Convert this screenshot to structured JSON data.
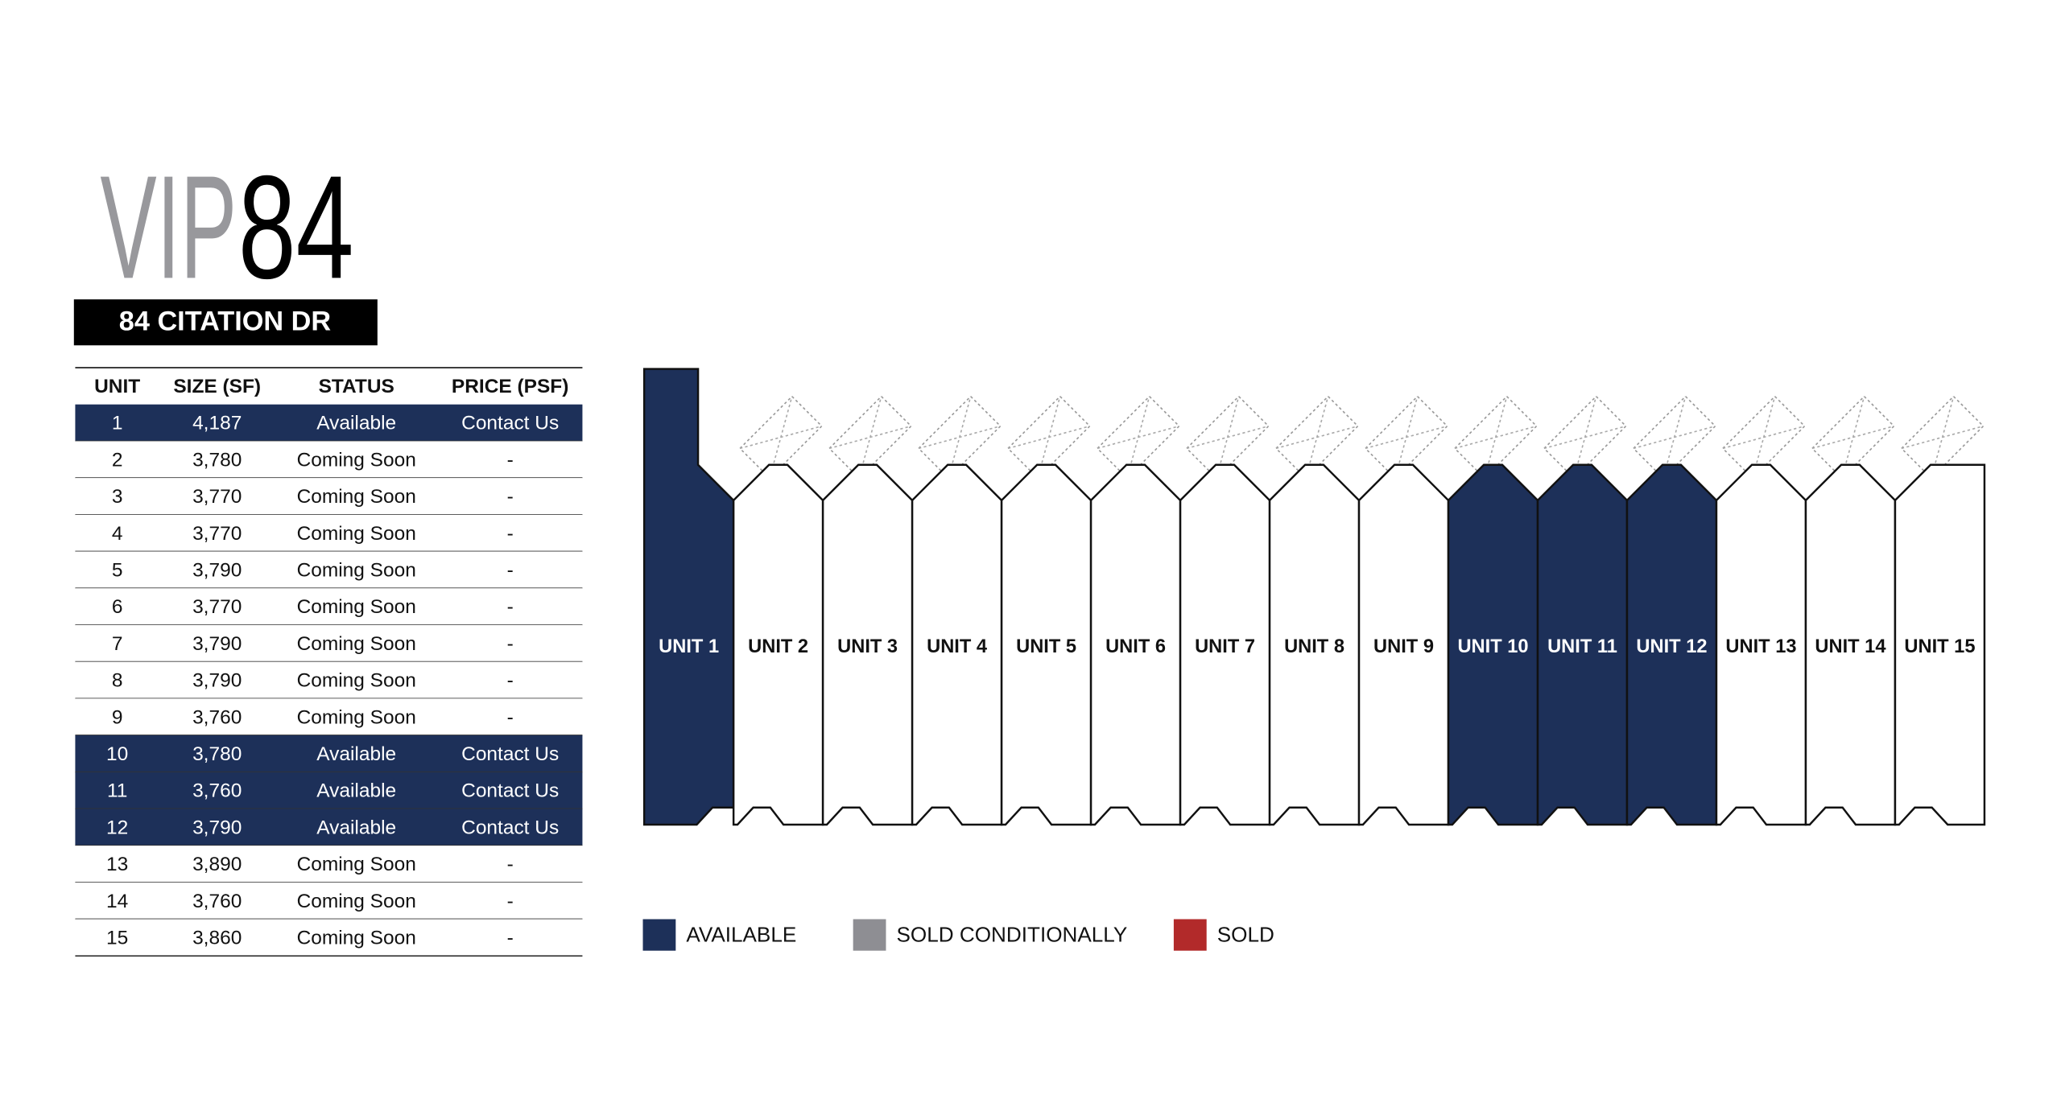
{
  "header": {
    "title_part1": "VIP",
    "title_part2": "84",
    "subtitle": "84 CITATION DR"
  },
  "table": {
    "columns": [
      "UNIT",
      "SIZE (SF)",
      "STATUS",
      "PRICE (PSF)"
    ],
    "rows": [
      {
        "cells": [
          "1",
          "4,187",
          "Available",
          "Contact Us"
        ],
        "fill": "#1d3059",
        "text_color": "#ffffff"
      },
      {
        "cells": [
          "2",
          "3,780",
          "Coming Soon",
          "-"
        ],
        "fill": "#ffffff",
        "text_color": "#111111"
      },
      {
        "cells": [
          "3",
          "3,770",
          "Coming Soon",
          "-"
        ],
        "fill": "#ffffff",
        "text_color": "#111111"
      },
      {
        "cells": [
          "4",
          "3,770",
          "Coming Soon",
          "-"
        ],
        "fill": "#ffffff",
        "text_color": "#111111"
      },
      {
        "cells": [
          "5",
          "3,790",
          "Coming Soon",
          "-"
        ],
        "fill": "#ffffff",
        "text_color": "#111111"
      },
      {
        "cells": [
          "6",
          "3,770",
          "Coming Soon",
          "-"
        ],
        "fill": "#ffffff",
        "text_color": "#111111"
      },
      {
        "cells": [
          "7",
          "3,790",
          "Coming Soon",
          "-"
        ],
        "fill": "#ffffff",
        "text_color": "#111111"
      },
      {
        "cells": [
          "8",
          "3,790",
          "Coming Soon",
          "-"
        ],
        "fill": "#ffffff",
        "text_color": "#111111"
      },
      {
        "cells": [
          "9",
          "3,760",
          "Coming Soon",
          "-"
        ],
        "fill": "#ffffff",
        "text_color": "#111111"
      },
      {
        "cells": [
          "10",
          "3,780",
          "Available",
          "Contact Us"
        ],
        "fill": "#1d3059",
        "text_color": "#ffffff"
      },
      {
        "cells": [
          "11",
          "3,760",
          "Available",
          "Contact Us"
        ],
        "fill": "#1d3059",
        "text_color": "#ffffff"
      },
      {
        "cells": [
          "12",
          "3,790",
          "Available",
          "Contact Us"
        ],
        "fill": "#1d3059",
        "text_color": "#ffffff"
      },
      {
        "cells": [
          "13",
          "3,890",
          "Coming Soon",
          "-"
        ],
        "fill": "#ffffff",
        "text_color": "#111111"
      },
      {
        "cells": [
          "14",
          "3,760",
          "Coming Soon",
          "-"
        ],
        "fill": "#ffffff",
        "text_color": "#111111"
      },
      {
        "cells": [
          "15",
          "3,860",
          "Coming Soon",
          "-"
        ],
        "fill": "#ffffff",
        "text_color": "#111111"
      }
    ]
  },
  "plan": {
    "units": [
      {
        "label": "UNIT 1",
        "fill": "#1d3059",
        "text_color": "#ffffff"
      },
      {
        "label": "UNIT 2",
        "fill": "#ffffff",
        "text_color": "#111111"
      },
      {
        "label": "UNIT 3",
        "fill": "#ffffff",
        "text_color": "#111111"
      },
      {
        "label": "UNIT 4",
        "fill": "#ffffff",
        "text_color": "#111111"
      },
      {
        "label": "UNIT 5",
        "fill": "#ffffff",
        "text_color": "#111111"
      },
      {
        "label": "UNIT 6",
        "fill": "#ffffff",
        "text_color": "#111111"
      },
      {
        "label": "UNIT 7",
        "fill": "#ffffff",
        "text_color": "#111111"
      },
      {
        "label": "UNIT 8",
        "fill": "#ffffff",
        "text_color": "#111111"
      },
      {
        "label": "UNIT 9",
        "fill": "#ffffff",
        "text_color": "#111111"
      },
      {
        "label": "UNIT 10",
        "fill": "#1d3059",
        "text_color": "#ffffff"
      },
      {
        "label": "UNIT 11",
        "fill": "#1d3059",
        "text_color": "#ffffff"
      },
      {
        "label": "UNIT 12",
        "fill": "#1d3059",
        "text_color": "#ffffff"
      },
      {
        "label": "UNIT 13",
        "fill": "#ffffff",
        "text_color": "#111111"
      },
      {
        "label": "UNIT 14",
        "fill": "#ffffff",
        "text_color": "#111111"
      },
      {
        "label": "UNIT 15",
        "fill": "#ffffff",
        "text_color": "#111111"
      }
    ]
  },
  "legend": [
    {
      "label": "AVAILABLE",
      "color": "#1d3059"
    },
    {
      "label": "SOLD CONDITIONALLY",
      "color": "#8e8e93"
    },
    {
      "label": "SOLD",
      "color": "#b22a2a"
    }
  ]
}
